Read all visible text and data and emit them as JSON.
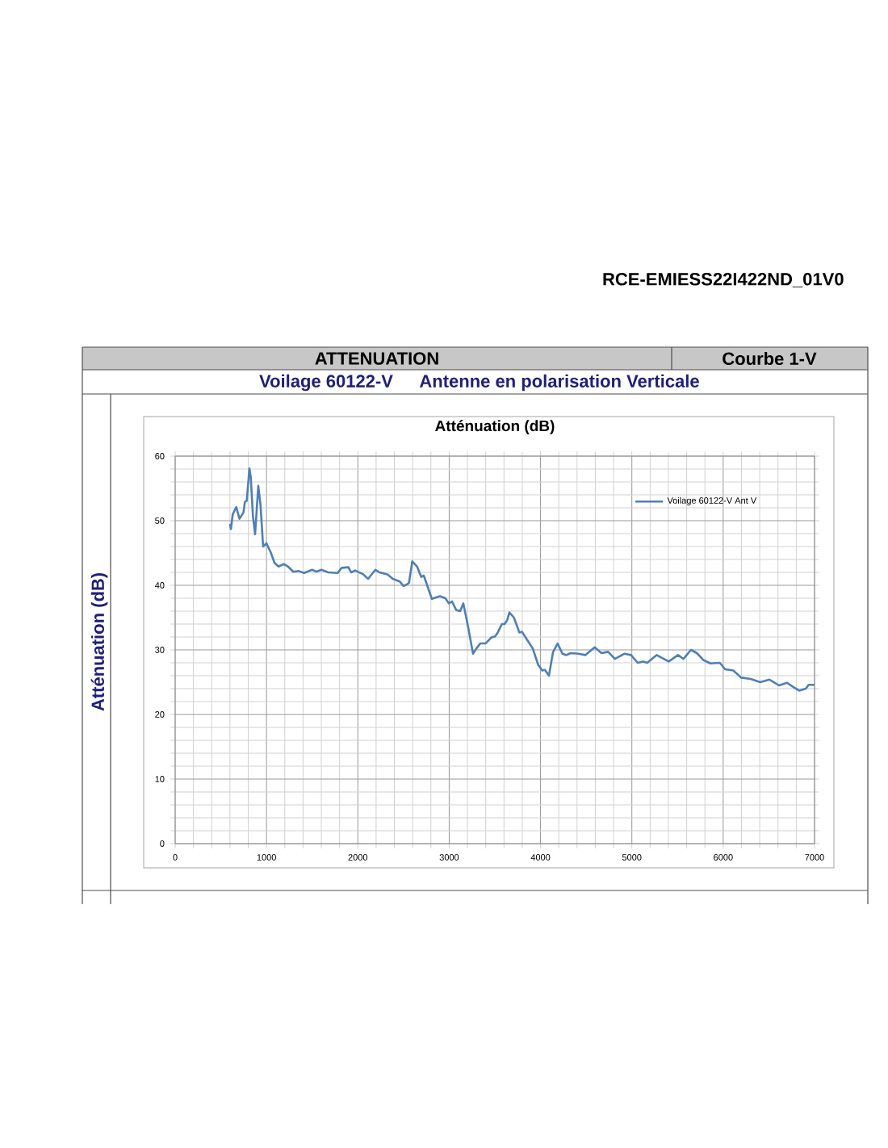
{
  "chart_data": {
    "type": "line",
    "title": "Atténuation (dB)",
    "ylabel": "Atténuation (dB)",
    "annotations": [
      "RCE-EMIESS22I422ND_01V0",
      "ATTENUATION",
      "Courbe 1-V",
      "Voilage 60122-V",
      "Antenne en polarisation Verticale"
    ],
    "xlim": [
      0,
      7000
    ],
    "ylim": [
      0,
      60
    ],
    "xticks": [
      0,
      1000,
      2000,
      3000,
      4000,
      5000,
      6000,
      7000
    ],
    "yticks": [
      0,
      10,
      20,
      30,
      40,
      50,
      60
    ],
    "grid": true,
    "legend": "top right",
    "series": [
      {
        "name": "Voilage 60122-V Ant V",
        "color": "#4f7fb5",
        "x": [
          600,
          610,
          630,
          669,
          704,
          748,
          763,
          784,
          813,
          828,
          851,
          875,
          910,
          934,
          963,
          999,
          1043,
          1087,
          1131,
          1190,
          1235,
          1293,
          1352,
          1411,
          1500,
          1544,
          1602,
          1676,
          1779,
          1823,
          1897,
          1927,
          1971,
          2059,
          2112,
          2192,
          2236,
          2324,
          2383,
          2457,
          2501,
          2545,
          2560,
          2596,
          2649,
          2693,
          2722,
          2810,
          2899,
          2958,
          2996,
          3031,
          3076,
          3120,
          3155,
          3208,
          3261,
          3297,
          3341,
          3400,
          3459,
          3503,
          3532,
          3577,
          3606,
          3635,
          3659,
          3709,
          3768,
          3797,
          3856,
          3915,
          3974,
          4019,
          4048,
          4092,
          4136,
          4187,
          4240,
          4284,
          4328,
          4417,
          4490,
          4593,
          4667,
          4740,
          4814,
          4917,
          4991,
          5064,
          5123,
          5168,
          5271,
          5403,
          5506,
          5565,
          5647,
          5712,
          5786,
          5860,
          5963,
          6021,
          6110,
          6198,
          6301,
          6405,
          6507,
          6611,
          6699,
          6773,
          6832,
          6905,
          6935,
          7000
        ],
        "values": [
          49.5,
          48.7,
          51,
          52.1,
          50.3,
          51.3,
          52.9,
          53.1,
          58.1,
          56.7,
          50.8,
          47.9,
          55.4,
          52.5,
          46.0,
          46.5,
          45.2,
          43.5,
          42.9,
          43.3,
          42.9,
          42.1,
          42.2,
          41.9,
          42.4,
          42.1,
          42.4,
          42.0,
          41.9,
          42.7,
          42.8,
          42.0,
          42.3,
          41.7,
          41.0,
          42.4,
          42.0,
          41.7,
          41.0,
          40.6,
          39.9,
          40.2,
          40.4,
          43.7,
          42.9,
          41.3,
          41.5,
          37.9,
          38.3,
          38.0,
          37.2,
          37.5,
          36.2,
          36.0,
          37.2,
          33.5,
          29.4,
          30.2,
          31.0,
          31.0,
          31.9,
          32.1,
          32.7,
          34.0,
          34.0,
          34.6,
          35.8,
          35.0,
          32.7,
          32.8,
          31.5,
          30.2,
          27.7,
          26.8,
          26.9,
          26.0,
          29.6,
          31.0,
          29.4,
          29.2,
          29.5,
          29.4,
          29.2,
          30.4,
          29.5,
          29.7,
          28.6,
          29.4,
          29.2,
          28.0,
          28.2,
          28.0,
          29.2,
          28.2,
          29.2,
          28.6,
          30.0,
          29.5,
          28.4,
          27.9,
          28.0,
          27.0,
          26.8,
          25.7,
          25.5,
          25.0,
          25.4,
          24.5,
          24.9,
          24.2,
          23.7,
          24.0,
          24.6,
          24.6
        ]
      }
    ]
  }
}
